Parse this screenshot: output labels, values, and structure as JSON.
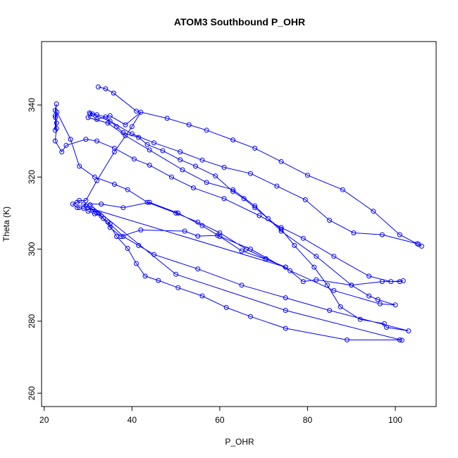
{
  "chart_data": {
    "type": "line",
    "title": "ATOM3 Southbound P_OHR",
    "xlabel": "P_OHR",
    "ylabel": "Theta (K)",
    "xlim": [
      19.4,
      109.3
    ],
    "ylim": [
      256.3,
      357.6
    ],
    "x_ticks": [
      "20",
      "40",
      "60",
      "80",
      "100"
    ],
    "y_ticks": [
      "260",
      "280",
      "300",
      "320",
      "340"
    ],
    "grid": false,
    "legend": "none",
    "colors": {
      "series": "#0000ff",
      "axis": "#000000",
      "background": "#ffffff"
    },
    "series": [
      {
        "points": [
          [
            32.3,
            345.0
          ],
          [
            34.0,
            344.5
          ],
          [
            35.8,
            343.3
          ],
          [
            41.0,
            338.3
          ],
          [
            48.0,
            336.3
          ],
          [
            53.0,
            334.5
          ],
          [
            57.0,
            333.0
          ],
          [
            63.0,
            330.3
          ],
          [
            68.0,
            328.0
          ],
          [
            74.0,
            324.3
          ],
          [
            80.0,
            320.5
          ],
          [
            88.0,
            316.5
          ],
          [
            95.0,
            310.5
          ],
          [
            101.0,
            304.0
          ],
          [
            105.3,
            301.3
          ],
          [
            106.0,
            300.8
          ],
          [
            105.0,
            301.5
          ],
          [
            97.0,
            304.0
          ],
          [
            90.5,
            304.5
          ],
          [
            85.0,
            308.0
          ],
          [
            79.5,
            313.7
          ],
          [
            73.0,
            317.5
          ],
          [
            67.0,
            321.0
          ],
          [
            61.0,
            322.7
          ],
          [
            56.0,
            324.7
          ],
          [
            51.0,
            327.0
          ],
          [
            45.0,
            329.5
          ],
          [
            40.0,
            332.0
          ],
          [
            35.0,
            335.5
          ],
          [
            31.0,
            337.5
          ],
          [
            30.3,
            337.8
          ],
          [
            32.0,
            337.3
          ],
          [
            34.0,
            336.7
          ],
          [
            36.5,
            334.0
          ],
          [
            38.0,
            332.3
          ],
          [
            41.5,
            331.0
          ],
          [
            43.5,
            329.0
          ],
          [
            47.0,
            327.3
          ],
          [
            51.0,
            324.8
          ],
          [
            54.5,
            323.0
          ],
          [
            59.0,
            320.3
          ],
          [
            63.0,
            316.0
          ],
          [
            65.5,
            314.0
          ],
          [
            68.0,
            311.5
          ],
          [
            71.0,
            308.5
          ],
          [
            74.0,
            305.5
          ],
          [
            77.0,
            301.0
          ],
          [
            81.5,
            295.0
          ],
          [
            84.5,
            290.0
          ],
          [
            87.5,
            284.0
          ],
          [
            92.0,
            280.5
          ],
          [
            97.5,
            279.3
          ],
          [
            98.0,
            278.3
          ],
          [
            103.0,
            277.3
          ],
          [
            85.0,
            283.0
          ],
          [
            75.0,
            286.5
          ],
          [
            65.0,
            290.0
          ],
          [
            55.0,
            294.5
          ],
          [
            45.0,
            298.5
          ],
          [
            41.5,
            301.0
          ],
          [
            38.0,
            303.5
          ],
          [
            35.0,
            307.0
          ],
          [
            33.5,
            308.5
          ],
          [
            32.5,
            310.0
          ],
          [
            31.0,
            311.0
          ],
          [
            29.5,
            312.0
          ],
          [
            29.0,
            312.5
          ],
          [
            33.0,
            312.5
          ],
          [
            38.0,
            311.5
          ],
          [
            44.0,
            313.0
          ],
          [
            50.5,
            310.0
          ],
          [
            56.0,
            306.5
          ],
          [
            60.0,
            303.5
          ],
          [
            65.0,
            299.5
          ],
          [
            70.5,
            297.2
          ],
          [
            75.0,
            295.0
          ],
          [
            79.0,
            291.0
          ],
          [
            82.0,
            291.5
          ],
          [
            90.0,
            290.0
          ],
          [
            94.0,
            287.0
          ],
          [
            96.0,
            286.0
          ],
          [
            100.0,
            284.5
          ],
          [
            96.5,
            284.8
          ],
          [
            86.0,
            288.5
          ],
          [
            76.0,
            294.0
          ],
          [
            67.0,
            300.0
          ],
          [
            59.5,
            303.8
          ],
          [
            55.0,
            303.6
          ],
          [
            52.0,
            305.0
          ],
          [
            42.0,
            305.3
          ],
          [
            37.5,
            303.5
          ],
          [
            35.0,
            306.0
          ],
          [
            33.0,
            309.2
          ],
          [
            31.5,
            309.8
          ],
          [
            30.0,
            310.5
          ],
          [
            29.0,
            311.3
          ],
          [
            28.0,
            311.5
          ],
          [
            27.5,
            311.5
          ],
          [
            26.5,
            312.5
          ],
          [
            27.5,
            313.0
          ],
          [
            28.0,
            313.5
          ],
          [
            29.5,
            313.5
          ],
          [
            32.0,
            319.0
          ],
          [
            36.0,
            327.0
          ],
          [
            40.0,
            334.0
          ],
          [
            42.0,
            338.0
          ],
          [
            38.5,
            334.5
          ],
          [
            35.0,
            337.0
          ],
          [
            32.0,
            336.0
          ],
          [
            30.5,
            337.5
          ],
          [
            30.0,
            336.5
          ],
          [
            34.5,
            335.0
          ],
          [
            38.5,
            331.5
          ],
          [
            44.0,
            327.5
          ],
          [
            51.5,
            322.0
          ],
          [
            57.0,
            318.5
          ],
          [
            63.0,
            316.5
          ],
          [
            68.0,
            312.0
          ],
          [
            74.0,
            305.0
          ],
          [
            82.0,
            298.0
          ],
          [
            90.0,
            290.0
          ],
          [
            97.0,
            291.0
          ],
          [
            101.0,
            291.0
          ],
          [
            101.8,
            291.2
          ],
          [
            99.0,
            291.0
          ],
          [
            94.0,
            292.5
          ],
          [
            86.0,
            298.0
          ],
          [
            79.0,
            303.0
          ],
          [
            74.0,
            306.0
          ],
          [
            69.0,
            309.3
          ],
          [
            61.0,
            314.0
          ],
          [
            54.0,
            317.0
          ],
          [
            49.0,
            320.0
          ],
          [
            44.0,
            323.3
          ],
          [
            40.5,
            325.0
          ],
          [
            36.0,
            328.0
          ],
          [
            32.0,
            330.0
          ],
          [
            29.5,
            330.5
          ],
          [
            25.0,
            328.8
          ],
          [
            24.0,
            327.0
          ],
          [
            22.5,
            330.0
          ],
          [
            22.8,
            333.5
          ],
          [
            22.5,
            337.0
          ],
          [
            22.8,
            340.3
          ],
          [
            22.5,
            338.5
          ],
          [
            22.8,
            335.0
          ],
          [
            22.5,
            333.0
          ],
          [
            22.6,
            336.5
          ],
          [
            22.9,
            338.0
          ],
          [
            26.0,
            330.5
          ],
          [
            28.0,
            323.0
          ],
          [
            31.5,
            320.0
          ],
          [
            36.0,
            318.0
          ],
          [
            39.0,
            316.5
          ],
          [
            43.5,
            313.0
          ],
          [
            50.0,
            310.0
          ],
          [
            55.0,
            307.5
          ],
          [
            60.0,
            304.5
          ],
          [
            66.0,
            300.0
          ],
          [
            70.5,
            297.3
          ],
          [
            75.0,
            295.0
          ],
          [
            30.0,
            311.5
          ],
          [
            32.0,
            310.0
          ],
          [
            34.5,
            307.5
          ],
          [
            36.5,
            303.5
          ],
          [
            39.0,
            300.2
          ],
          [
            41.0,
            296.0
          ],
          [
            43.0,
            292.5
          ],
          [
            46.0,
            291.3
          ],
          [
            50.5,
            289.3
          ],
          [
            56.0,
            287.0
          ],
          [
            61.5,
            283.8
          ],
          [
            67.0,
            281.3
          ],
          [
            75.0,
            278.0
          ],
          [
            89.0,
            274.8
          ],
          [
            101.0,
            274.8
          ],
          [
            101.5,
            274.7
          ],
          [
            75.0,
            283.0
          ],
          [
            50.0,
            293.0
          ],
          [
            30.5,
            312.3
          ]
        ]
      }
    ]
  }
}
